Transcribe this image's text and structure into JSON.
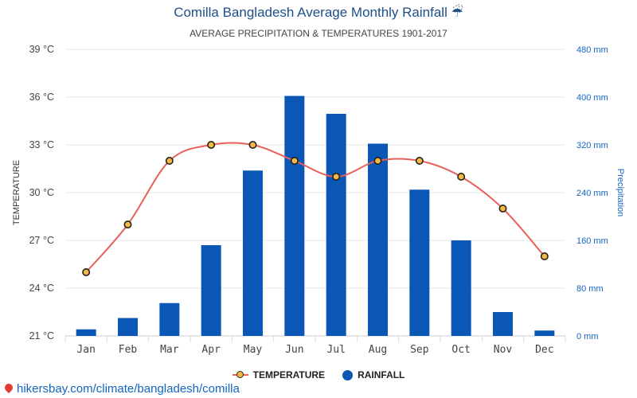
{
  "title": "Comilla Bangladesh Average Monthly Rainfall ☔",
  "subtitle": "AVERAGE PRECIPITATION & TEMPERATURES 1901-2017",
  "footer_url": "hikersbay.com/climate/bangladesh/comilla",
  "legend": {
    "temperature": "TEMPERATURE",
    "rainfall": "RAINFALL"
  },
  "colors": {
    "bar": "#0b57b5",
    "line": "#e8605a",
    "marker": "#f5b942",
    "right_axis": "#1565c0",
    "title": "#1e4f8a"
  },
  "chart_data": {
    "type": "bar",
    "categories": [
      "Jan",
      "Feb",
      "Mar",
      "Apr",
      "May",
      "Jun",
      "Jul",
      "Aug",
      "Sep",
      "Oct",
      "Nov",
      "Dec"
    ],
    "series": [
      {
        "name": "RAINFALL",
        "type": "bar",
        "axis": "right",
        "unit": "mm",
        "values": [
          11,
          30,
          55,
          152,
          277,
          402,
          372,
          322,
          245,
          160,
          40,
          9
        ]
      },
      {
        "name": "TEMPERATURE",
        "type": "line",
        "axis": "left",
        "unit": "°C",
        "values": [
          25,
          28,
          32,
          33,
          33,
          32,
          31,
          32,
          32,
          31,
          29,
          26
        ]
      }
    ],
    "ylabel_left": "TEMPERATURE",
    "ylabel_right": "Precipitation",
    "ylim_left": [
      21,
      39
    ],
    "ylim_right": [
      0,
      480
    ],
    "yticks_left": [
      "21 °C",
      "24 °C",
      "27 °C",
      "30 °C",
      "33 °C",
      "36 °C",
      "39 °C"
    ],
    "yticks_right": [
      "0 mm",
      "80 mm",
      "160 mm",
      "240 mm",
      "320 mm",
      "400 mm",
      "480 mm"
    ],
    "grid": true,
    "legend_position": "bottom"
  }
}
